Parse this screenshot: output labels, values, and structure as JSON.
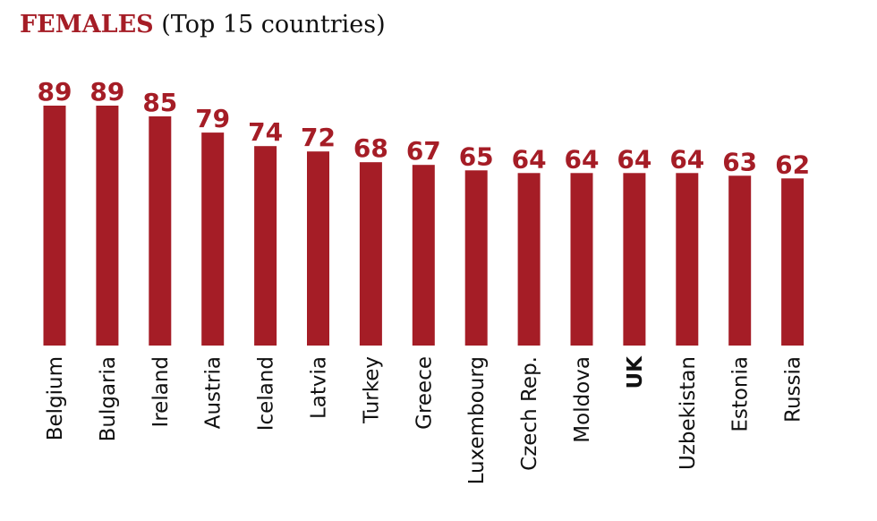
{
  "title": {
    "strong": "FEMALES",
    "sub": "(Top 15 countries)"
  },
  "colors": {
    "bar": "#a51d26",
    "label": "#a51d26",
    "text": "#111111"
  },
  "chart_data": {
    "type": "bar",
    "title": "FEMALES (Top 15 countries)",
    "categories": [
      "Belgium",
      "Bulgaria",
      "Ireland",
      "Austria",
      "Iceland",
      "Latvia",
      "Turkey",
      "Greece",
      "Luxembourg",
      "Czech Rep.",
      "Moldova",
      "UK",
      "Uzbekistan",
      "Estonia",
      "Russia"
    ],
    "values": [
      89,
      89,
      85,
      79,
      74,
      72,
      68,
      67,
      65,
      64,
      64,
      64,
      64,
      63,
      62
    ],
    "highlight": "UK",
    "xlabel": "",
    "ylabel": "",
    "ylim": [
      0,
      89
    ],
    "grid": false,
    "legend": "none"
  }
}
